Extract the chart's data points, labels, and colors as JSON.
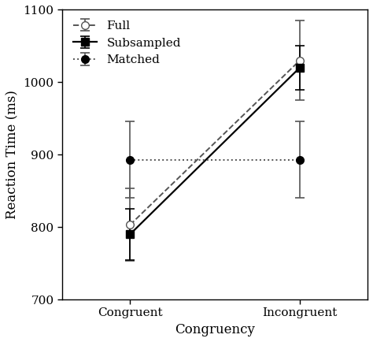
{
  "x_positions": [
    1,
    2
  ],
  "x_labels": [
    "Congruent",
    "Incongruent"
  ],
  "xlabel": "Congruency",
  "ylabel": "Reaction Time (ms)",
  "ylim": [
    700,
    1100
  ],
  "yticks": [
    700,
    800,
    900,
    1000,
    1100
  ],
  "xlim": [
    0.6,
    2.4
  ],
  "series": [
    {
      "label": "Full",
      "y": [
        803,
        1030
      ],
      "yerr": [
        50,
        55
      ],
      "color": "#555555",
      "linestyle": "--",
      "marker": "o",
      "markerfacecolor": "white",
      "markeredgecolor": "#555555",
      "markersize": 7,
      "linewidth": 1.4
    },
    {
      "label": "Subsampled",
      "y": [
        790,
        1020
      ],
      "yerr": [
        35,
        30
      ],
      "color": "#000000",
      "linestyle": "-",
      "marker": "s",
      "markerfacecolor": "black",
      "markeredgecolor": "#000000",
      "markersize": 7,
      "linewidth": 1.6
    },
    {
      "label": "Matched",
      "y": [
        893,
        893
      ],
      "yerr": [
        53,
        53
      ],
      "color": "#555555",
      "linestyle": ":",
      "marker": "o",
      "markerfacecolor": "black",
      "markeredgecolor": "#000000",
      "markersize": 7,
      "linewidth": 1.4
    }
  ],
  "legend_loc": "upper left",
  "background_color": "#ffffff",
  "capsize": 4,
  "label_fontsize": 12,
  "tick_fontsize": 11,
  "legend_fontsize": 11
}
